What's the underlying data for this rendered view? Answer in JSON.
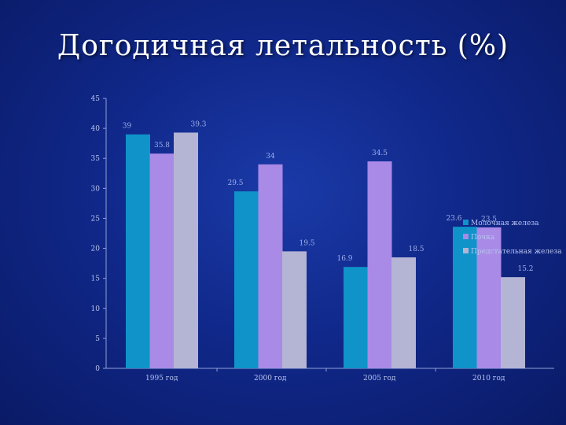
{
  "slide": {
    "title": "Догодичная летальность (%)"
  },
  "chart_data": {
    "type": "bar",
    "title": "",
    "xlabel": "",
    "ylabel": "",
    "ylim": [
      0,
      45
    ],
    "yticks": [
      0,
      5,
      10,
      15,
      20,
      25,
      30,
      35,
      40,
      45
    ],
    "grid": false,
    "legend_position": "right",
    "categories": [
      "1995 год",
      "2000 год",
      "2005 год",
      "2010 год"
    ],
    "series": [
      {
        "name": "Молочная железа",
        "color": "#0f93c8",
        "values": [
          39,
          29.5,
          16.9,
          23.6
        ],
        "labels": [
          "39",
          "29.5",
          "16.9",
          "23.6"
        ]
      },
      {
        "name": "Почка",
        "color": "#a98ae6",
        "values": [
          35.8,
          34,
          34.5,
          23.5
        ],
        "labels": [
          "35.8",
          "34",
          "34.5",
          "23.5"
        ]
      },
      {
        "name": "Предстательная железа",
        "color": "#b4b4d4",
        "values": [
          39.3,
          19.5,
          18.5,
          15.2
        ],
        "labels": [
          "39.3",
          "19.5",
          "18.5",
          "15.2"
        ]
      }
    ]
  }
}
